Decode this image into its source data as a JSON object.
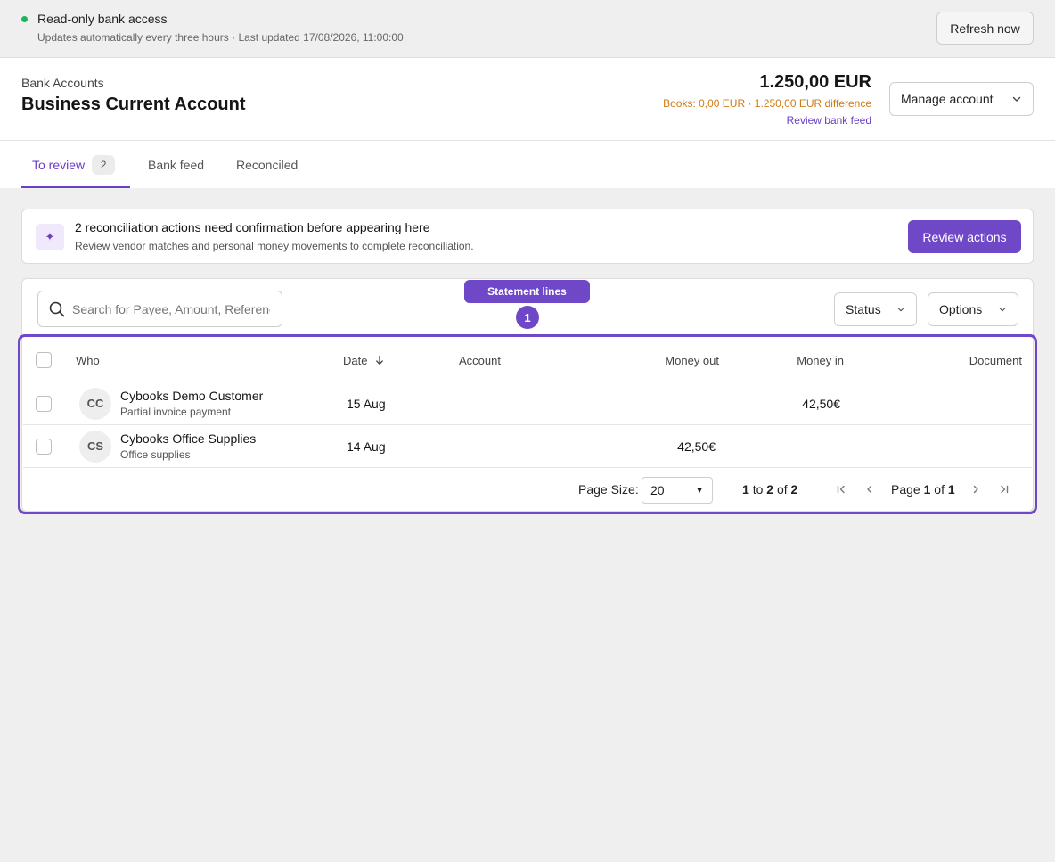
{
  "topbar": {
    "access_label": "Read-only bank access",
    "updated_text": "Updates automatically every three hours · Last updated 17/08/2026, 11:00:00",
    "refresh_label": "Refresh now",
    "status_color": "#1fb35a"
  },
  "header": {
    "breadcrumb": "Bank Accounts",
    "title": "Business Current Account",
    "balance": "1.250,00 EUR",
    "books_text": "Books: 0,00 EUR · 1.250,00 EUR difference",
    "review_feed_label": "Review bank feed",
    "manage_label": "Manage account"
  },
  "tabs": [
    {
      "label": "To review",
      "badge": "2"
    },
    {
      "label": "Bank feed"
    },
    {
      "label": "Reconciled"
    }
  ],
  "notice": {
    "title": "2 reconciliation actions need confirmation before appearing here",
    "subtitle": "Review vendor matches and personal money movements to complete reconciliation.",
    "button_label": "Review actions",
    "icon": "sparkle-icon"
  },
  "toolbar": {
    "search_placeholder": "Search for Payee, Amount, Reference",
    "status_label": "Status",
    "options_label": "Options"
  },
  "highlight": {
    "label": "Statement lines",
    "number": "1",
    "color": "#6f48c8"
  },
  "table": {
    "columns": {
      "who": "Who",
      "date": "Date",
      "account": "Account",
      "money_out": "Money out",
      "money_in": "Money in",
      "document": "Document"
    },
    "sort": {
      "column": "date",
      "direction": "desc"
    },
    "rows": [
      {
        "initials": "CC",
        "name": "Cybooks Demo Customer",
        "sub": "Partial invoice payment",
        "date": "15 Aug",
        "account": "",
        "money_out": "",
        "money_in": "42,50€",
        "document": ""
      },
      {
        "initials": "CS",
        "name": "Cybooks Office Supplies",
        "sub": "Office supplies",
        "date": "14 Aug",
        "account": "",
        "money_out": "42,50€",
        "money_in": "",
        "document": ""
      }
    ]
  },
  "pager": {
    "page_size_label": "Page Size:",
    "page_size": "20",
    "range_from": "1",
    "range_to_word": "to",
    "range_to": "2",
    "of_word": "of",
    "total": "2",
    "page_word": "Page",
    "page": "1",
    "page_of_word": "of",
    "pages": "1"
  }
}
